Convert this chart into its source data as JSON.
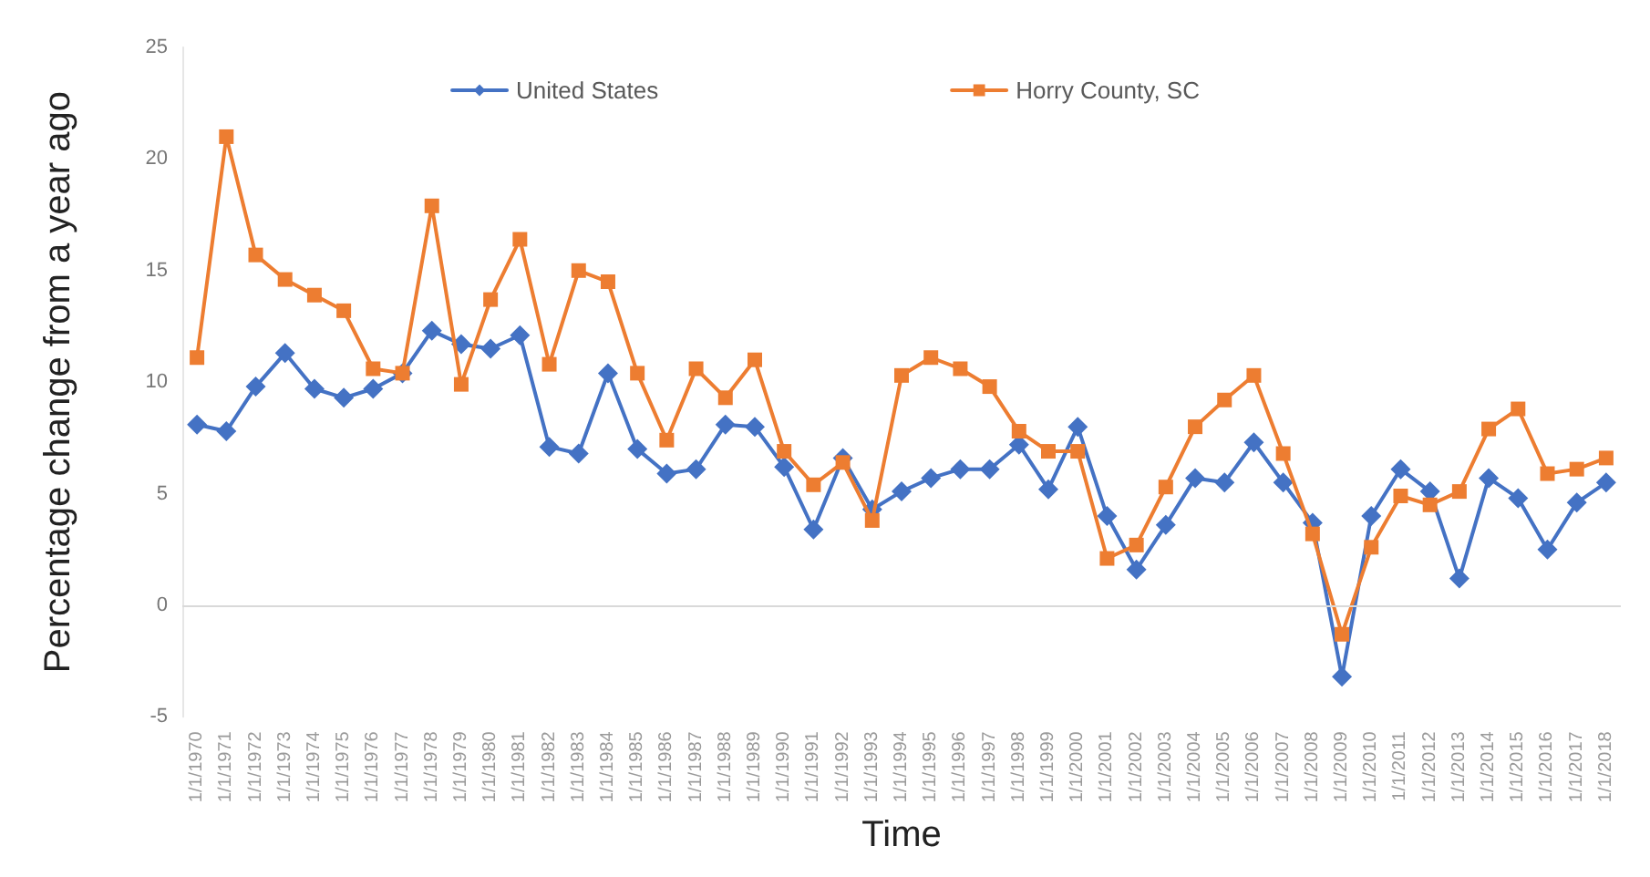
{
  "chart_data": {
    "type": "line",
    "xlabel": "Time",
    "ylabel": "Percentage change from a year ago",
    "categories": [
      "1/1/1970",
      "1/1/1971",
      "1/1/1972",
      "1/1/1973",
      "1/1/1974",
      "1/1/1975",
      "1/1/1976",
      "1/1/1977",
      "1/1/1978",
      "1/1/1979",
      "1/1/1980",
      "1/1/1981",
      "1/1/1982",
      "1/1/1983",
      "1/1/1984",
      "1/1/1985",
      "1/1/1986",
      "1/1/1987",
      "1/1/1988",
      "1/1/1989",
      "1/1/1990",
      "1/1/1991",
      "1/1/1992",
      "1/1/1993",
      "1/1/1994",
      "1/1/1995",
      "1/1/1996",
      "1/1/1997",
      "1/1/1998",
      "1/1/1999",
      "1/1/2000",
      "1/1/2001",
      "1/1/2002",
      "1/1/2003",
      "1/1/2004",
      "1/1/2005",
      "1/1/2006",
      "1/1/2007",
      "1/1/2008",
      "1/1/2009",
      "1/1/2010",
      "1/1/2011",
      "1/1/2012",
      "1/1/2013",
      "1/1/2014",
      "1/1/2015",
      "1/1/2016",
      "1/1/2017",
      "1/1/2018"
    ],
    "series": [
      {
        "name": "United States",
        "color": "#4472c4",
        "marker": "diamond",
        "values": [
          8.1,
          7.8,
          9.8,
          11.3,
          9.7,
          9.3,
          9.7,
          10.4,
          12.3,
          11.7,
          11.5,
          12.1,
          7.1,
          6.8,
          10.4,
          7.0,
          5.9,
          6.1,
          8.1,
          8.0,
          6.2,
          3.4,
          6.6,
          4.3,
          5.1,
          5.7,
          6.1,
          6.1,
          7.2,
          5.2,
          8.0,
          4.0,
          1.6,
          3.6,
          5.7,
          5.5,
          7.3,
          5.5,
          3.7,
          -3.2,
          4.0,
          6.1,
          5.1,
          1.2,
          5.7,
          4.8,
          2.5,
          4.6,
          5.5
        ]
      },
      {
        "name": "Horry County, SC",
        "color": "#ed7d31",
        "marker": "square",
        "values": [
          11.1,
          21.0,
          15.7,
          14.6,
          13.9,
          13.2,
          10.6,
          10.4,
          17.9,
          9.9,
          13.7,
          16.4,
          10.8,
          15.0,
          14.5,
          10.4,
          7.4,
          10.6,
          9.3,
          11.0,
          6.9,
          5.4,
          6.4,
          3.8,
          10.3,
          11.1,
          10.6,
          9.8,
          7.8,
          6.9,
          6.9,
          2.1,
          2.7,
          5.3,
          8.0,
          9.2,
          10.3,
          6.8,
          3.2,
          -1.3,
          2.6,
          4.9,
          4.5,
          5.1,
          7.9,
          8.8,
          5.9,
          6.1,
          6.6
        ]
      }
    ],
    "ylim": [
      -5,
      25
    ],
    "yticks": [
      -5,
      0,
      5,
      10,
      15,
      20,
      25
    ],
    "grid": false,
    "ref_lines": [
      {
        "axis": "y",
        "value": 0,
        "color": "#d9d9d9"
      }
    ],
    "legend": "top",
    "line_style": "solid"
  }
}
